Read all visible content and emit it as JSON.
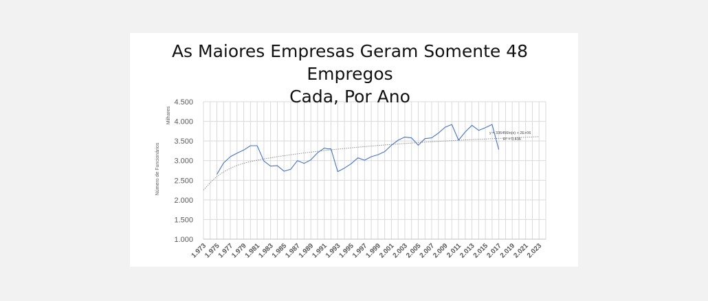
{
  "chart_data": {
    "type": "line",
    "title_lines": [
      "As Maiores Empresas Geram Somente 48 Empregos",
      "Cada, Por Ano"
    ],
    "ylabel": "Número de Funcionários",
    "yunit": "Milhares",
    "ylim": [
      1000,
      4500
    ],
    "yticks": [
      1000,
      1500,
      2000,
      2500,
      3000,
      3500,
      4000,
      4500
    ],
    "ytick_labels": [
      "1.000",
      "1.500",
      "2.000",
      "2.500",
      "3.000",
      "3.500",
      "4.000",
      "4.500"
    ],
    "xlim": [
      1973,
      2024
    ],
    "xticks": [
      1973,
      1975,
      1977,
      1979,
      1981,
      1983,
      1985,
      1987,
      1989,
      1991,
      1993,
      1995,
      1997,
      1999,
      2001,
      2003,
      2005,
      2007,
      2009,
      2011,
      2013,
      2015,
      2017,
      2019,
      2021,
      2023
    ],
    "xtick_labels": [
      "1.973",
      "1.975",
      "1.977",
      "1.979",
      "1.981",
      "1.983",
      "1.985",
      "1.987",
      "1.989",
      "1.991",
      "1.993",
      "1.995",
      "1.997",
      "1.999",
      "2.001",
      "2.003",
      "2.005",
      "2.007",
      "2.009",
      "2.011",
      "2.013",
      "2.015",
      "2.017",
      "2.019",
      "2.021",
      "2.023"
    ],
    "grid": true,
    "legend": "none",
    "series": [
      {
        "color": "#4472c4",
        "x": [
          1975,
          1976,
          1977,
          1978,
          1979,
          1980,
          1981,
          1982,
          1983,
          1984,
          1985,
          1986,
          1987,
          1988,
          1989,
          1990,
          1991,
          1991.5,
          1992,
          1993,
          1994,
          1995,
          1996,
          1997,
          1998,
          1999,
          2000,
          2001,
          2002,
          2003,
          2004,
          2005,
          2006,
          2007,
          2008,
          2009,
          2010,
          2011,
          2012,
          2013,
          2014,
          2015,
          2016,
          2017
        ],
        "y": [
          2650,
          2940,
          3100,
          3190,
          3270,
          3380,
          3380,
          2990,
          2860,
          2870,
          2730,
          2780,
          3000,
          2930,
          3020,
          3200,
          3320,
          3300,
          3300,
          2720,
          2810,
          2920,
          3070,
          3010,
          3100,
          3150,
          3230,
          3390,
          3520,
          3600,
          3580,
          3390,
          3560,
          3580,
          3700,
          3850,
          3920,
          3520,
          3730,
          3900,
          3770,
          3840,
          3920,
          3280
        ]
      }
    ],
    "trendline": {
      "type": "logarithmic",
      "color": "#8c8c8c",
      "equation": "y = 336456ln(x) + 2E+06",
      "r2_label": "R² = 0,436",
      "x": [
        1973,
        1975,
        1978,
        1982,
        1988,
        1995,
        2003,
        2012,
        2023
      ],
      "y": [
        2250,
        2620,
        2900,
        3050,
        3200,
        3330,
        3440,
        3530,
        3610
      ]
    }
  }
}
